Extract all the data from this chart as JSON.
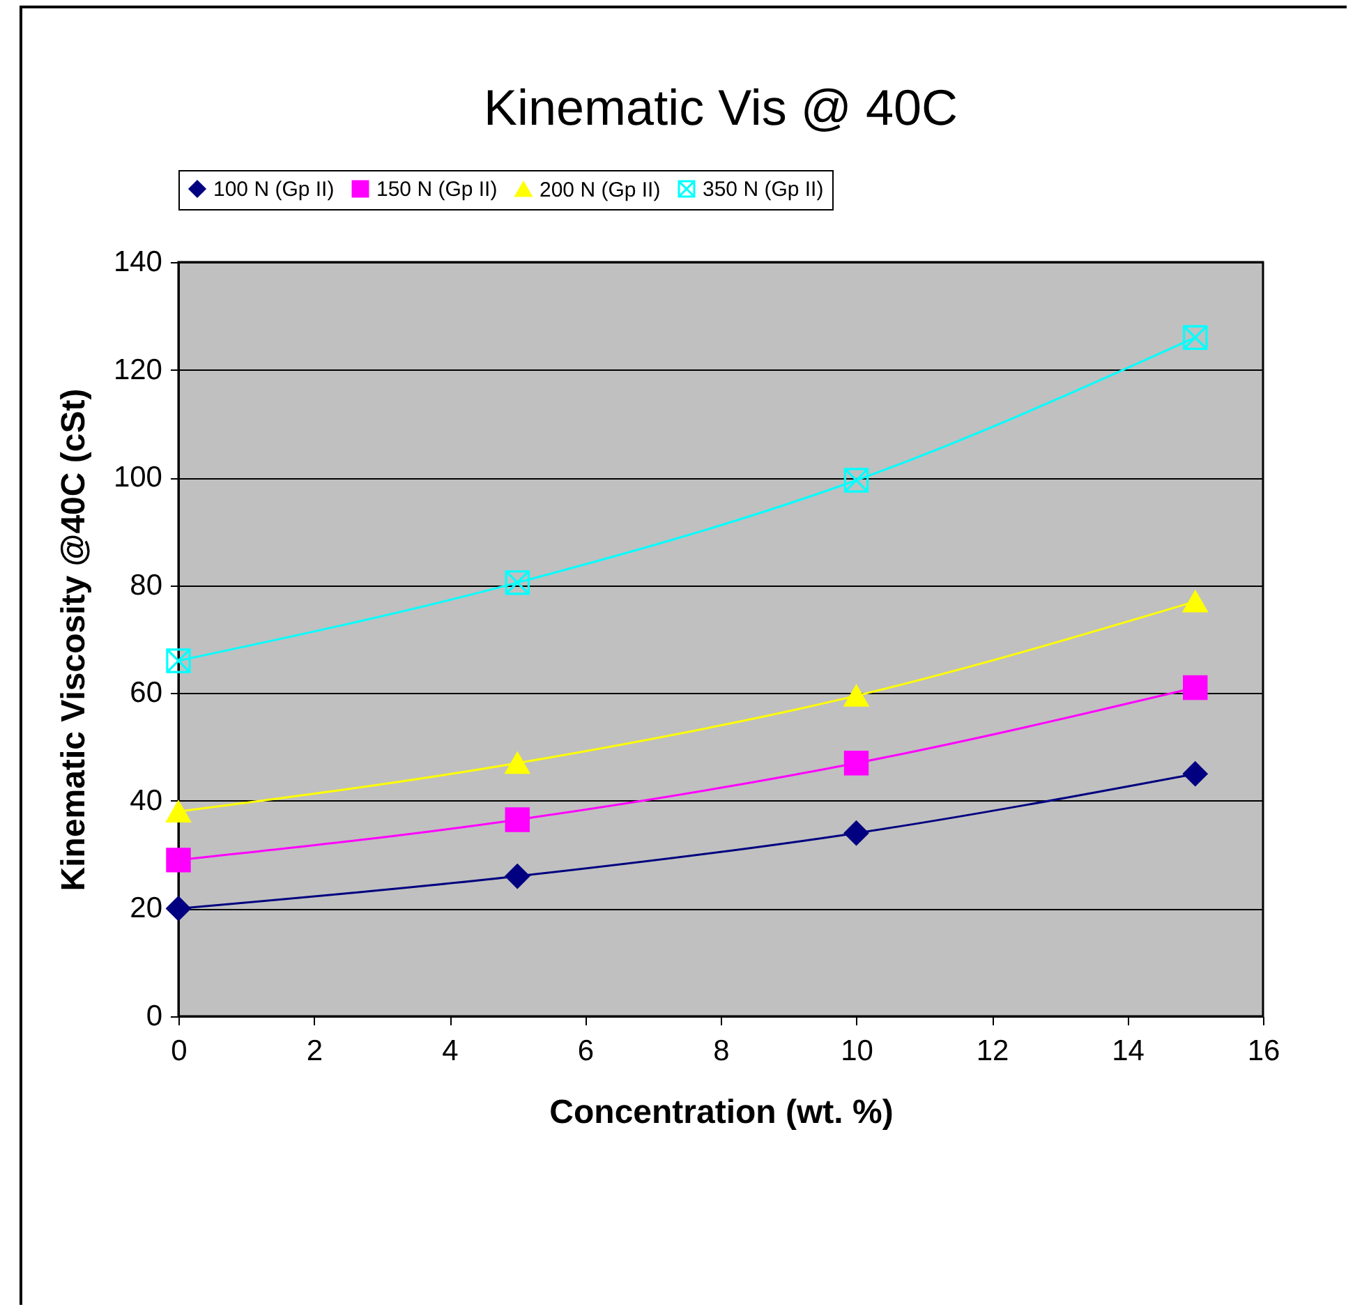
{
  "chart_data": {
    "type": "line",
    "title": "Kinematic Vis @ 40C",
    "xlabel": "Concentration (wt. %)",
    "ylabel": "Kinematic Viscosity @40C (cSt)",
    "x": [
      0,
      5,
      10,
      15
    ],
    "series": [
      {
        "name": "100 N (Gp II)",
        "color": "#000080",
        "marker": "diamond",
        "values": [
          20,
          26,
          34,
          45
        ]
      },
      {
        "name": "150 N (Gp II)",
        "color": "#ff00ff",
        "marker": "square",
        "values": [
          29,
          36.5,
          47,
          61
        ]
      },
      {
        "name": "200 N (Gp II)",
        "color": "#ffff00",
        "marker": "triangle",
        "values": [
          38,
          47,
          59.5,
          77
        ]
      },
      {
        "name": "350 N (Gp II)",
        "color": "#00ffff",
        "marker": "cross",
        "values": [
          66,
          80.5,
          99.5,
          126
        ]
      }
    ],
    "xlim": [
      0,
      16
    ],
    "xticks": [
      0,
      2,
      4,
      6,
      8,
      10,
      12,
      14,
      16
    ],
    "ylim": [
      0,
      140
    ],
    "yticks": [
      0,
      20,
      40,
      60,
      80,
      100,
      120,
      140
    ],
    "grid": "y",
    "legend": "top"
  }
}
